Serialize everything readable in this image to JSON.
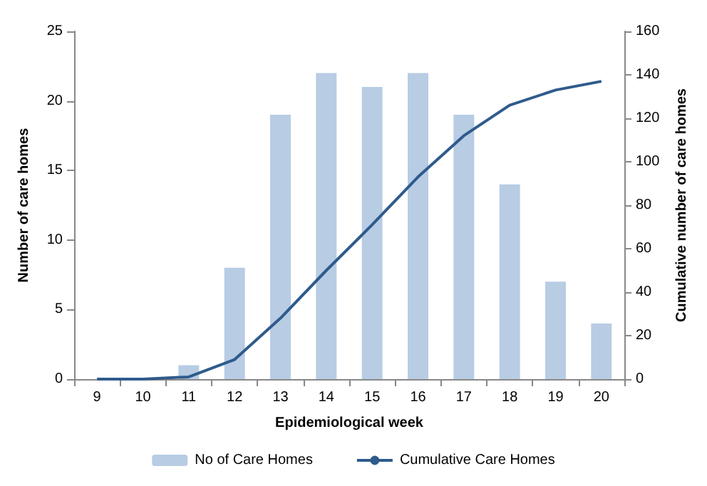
{
  "chart_data": {
    "type": "bar",
    "xlabel": "Epidemiological week",
    "ylabel": "Number of care homes",
    "y2label": "Cumulative number of care homes",
    "categories": [
      "9",
      "10",
      "11",
      "12",
      "13",
      "14",
      "15",
      "16",
      "17",
      "18",
      "19",
      "20"
    ],
    "series": [
      {
        "name": "No of Care Homes",
        "color": "#b8cce4",
        "values": [
          0,
          0,
          1,
          8,
          19,
          22,
          21,
          22,
          19,
          14,
          7,
          4
        ]
      },
      {
        "name": "Cumulative Care Homes",
        "type": "line",
        "axis": "y2",
        "color": "#2f5b8c",
        "values": [
          0,
          0,
          1,
          9,
          28,
          50,
          71,
          93,
          112,
          126,
          133,
          137
        ]
      }
    ],
    "ylim": [
      0,
      25
    ],
    "yticks": [
      0,
      5,
      10,
      15,
      20,
      25
    ],
    "y2lim": [
      0,
      160
    ],
    "y2ticks": [
      0,
      20,
      40,
      60,
      80,
      100,
      120,
      140,
      160
    ],
    "grid": false,
    "legend": "bottom",
    "marker": "none"
  }
}
